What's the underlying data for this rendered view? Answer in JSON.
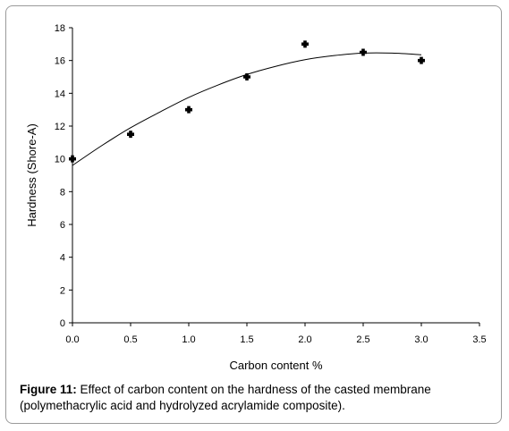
{
  "caption": {
    "label": "Figure 11:",
    "text": " Effect of carbon content on the hardness of the casted membrane (polymethacrylic acid and hydrolyzed acrylamide composite)."
  },
  "chart_data": {
    "type": "scatter",
    "title": "",
    "xlabel": "Carbon content %",
    "ylabel": "Hardness (Shore-A)",
    "xlim": [
      0,
      3.5
    ],
    "ylim": [
      0,
      18
    ],
    "xticks": [
      0.0,
      0.5,
      1.0,
      1.5,
      2.0,
      2.5,
      3.0,
      3.5
    ],
    "xtick_labels": [
      "0.0",
      "0.5",
      "1.0",
      "1.5",
      "2.0",
      "2.5",
      "3.0",
      "3.5"
    ],
    "yticks": [
      0,
      2,
      4,
      6,
      8,
      10,
      12,
      14,
      16,
      18
    ],
    "ytick_labels": [
      "0",
      "2",
      "4",
      "6",
      "8",
      "10",
      "12",
      "14",
      "16",
      "18"
    ],
    "grid": false,
    "series": [
      {
        "x": [
          0.0,
          0.5,
          1.0,
          1.5,
          2.0,
          2.5,
          3.0
        ],
        "y": [
          10,
          11.5,
          13,
          15,
          17,
          16.5,
          16
        ]
      }
    ],
    "trendline": {
      "type": "polynomial",
      "x": [
        0.0,
        0.25,
        0.5,
        0.75,
        1.0,
        1.25,
        1.5,
        1.75,
        2.0,
        2.25,
        2.5,
        2.75,
        3.0
      ],
      "y": [
        9.6,
        10.8,
        11.9,
        12.85,
        13.75,
        14.5,
        15.15,
        15.65,
        16.05,
        16.3,
        16.45,
        16.45,
        16.35
      ]
    },
    "colors": {
      "marker": "#000000",
      "line": "#000000"
    }
  }
}
